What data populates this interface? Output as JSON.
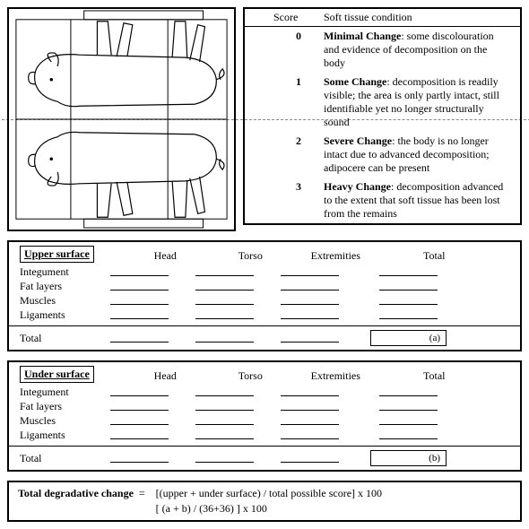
{
  "scoring": {
    "header_score": "Score",
    "header_cond": "Soft tissue condition",
    "rows": [
      {
        "score": "0",
        "title": "Minimal Change",
        "desc": ": some discolouration and evidence of decomposition on the body"
      },
      {
        "score": "1",
        "title": "Some Change",
        "desc": ": decomposition is readily visible; the area is only partly intact, still identifiable yet no longer structurally sound"
      },
      {
        "score": "2",
        "title": "Severe Change",
        "desc": ": the body is no longer intact due to advanced decomposition; adipocere can be present"
      },
      {
        "score": "3",
        "title": "Heavy Change",
        "desc": ": decomposition advanced to the extent that soft tissue has been lost from the remains"
      }
    ]
  },
  "sheets": {
    "columns": [
      "Head",
      "Torso",
      "Extremities"
    ],
    "total_label": "Total",
    "tissues": [
      "Integument",
      "Fat layers",
      "Muscles",
      "Ligaments"
    ],
    "row_total_label": "Total",
    "upper": {
      "label": "Upper surface",
      "grand_label": "(a)"
    },
    "under": {
      "label": "Under surface",
      "grand_label": "(b)"
    }
  },
  "formula": {
    "label": "Total degradative change",
    "eq": "=",
    "line1": "[(upper + under surface) / total possible score] x 100",
    "line2": "[ (a + b) / (36+36) ] x 100"
  },
  "diagram": {
    "regions": [
      "Head",
      "Torso",
      "Extremities"
    ],
    "mirrored": true
  }
}
